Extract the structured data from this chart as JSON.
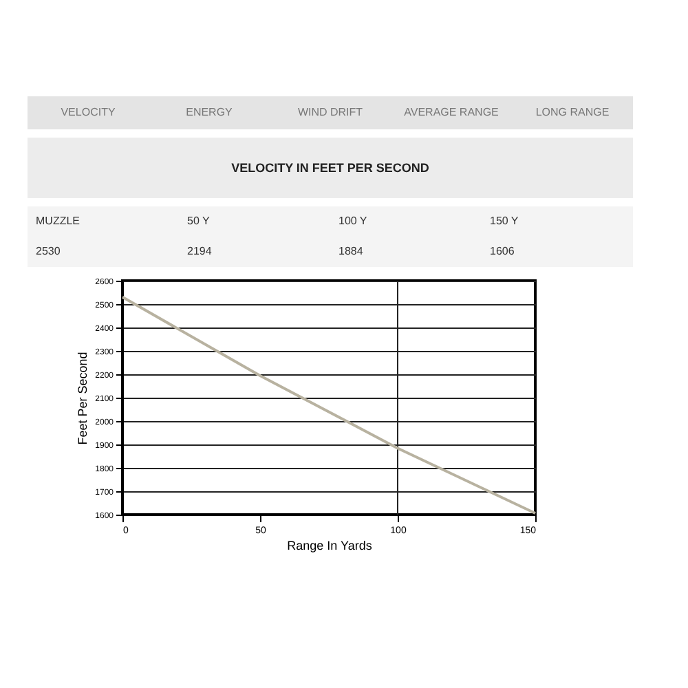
{
  "chart_data": {
    "type": "line",
    "title": "VELOCITY IN FEET PER SECOND",
    "xlabel": "Range In Yards",
    "ylabel": "Feet Per Second",
    "x": [
      0,
      50,
      100,
      150
    ],
    "series": [
      {
        "color": "#b8b2a0",
        "values": [
          2530,
          2194,
          1884,
          1606
        ]
      }
    ],
    "value_labels": [
      "2530",
      "2194",
      "1884",
      "1606"
    ],
    "annotations": [
      "VELOCITY",
      "ENERGY",
      "WIND DRIFT",
      "AVERAGE RANGE",
      "LONG RANGE",
      "MUZZLE",
      "50 Y",
      "100 Y",
      "150 Y"
    ],
    "xlim": [
      0,
      150
    ],
    "xticks": [
      0,
      50,
      100,
      150
    ],
    "ylim": [
      1600,
      2600
    ],
    "yticks": [
      1600,
      1700,
      1800,
      1900,
      2000,
      2100,
      2200,
      2300,
      2400,
      2500,
      2600
    ],
    "grid": "y",
    "ref_lines": [
      {
        "axis": "x",
        "value": 100,
        "color": "#222222"
      }
    ],
    "marker": "none",
    "line_style": "solid"
  }
}
